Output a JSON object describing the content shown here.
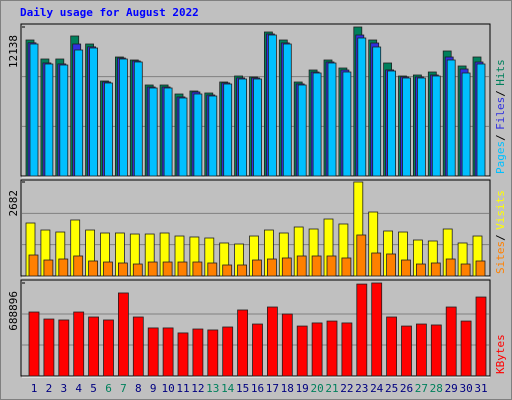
{
  "chart_data": [
    {
      "type": "bar",
      "title": "Daily usage for August 2022",
      "ylim": [
        0,
        12138
      ],
      "yticks": [
        12138
      ],
      "series": [
        {
          "name": "Hits",
          "color": "#00805c",
          "values": [
            11079,
            9531,
            9531,
            11405,
            10753,
            7739,
            9694,
            9450,
            7413,
            7413,
            6680,
            6924,
            6761,
            7657,
            8146,
            8065,
            11731,
            11079,
            7657,
            8635,
            9450,
            8798,
            12138,
            11079,
            9205,
            8146,
            8228,
            8472,
            10183,
            8961,
            9694
          ]
        },
        {
          "name": "Files",
          "color": "#3030e0",
          "values": [
            10850,
            9210,
            9130,
            10753,
            10520,
            7660,
            9610,
            9370,
            7250,
            7250,
            6440,
            6843,
            6600,
            7580,
            7990,
            7990,
            11570,
            10840,
            7500,
            8470,
            9290,
            8635,
            11486,
            10834,
            8640,
            8070,
            8070,
            8230,
            9694,
            8716,
            9287
          ]
        },
        {
          "name": "Pages",
          "color": "#00c0ff",
          "values": [
            10753,
            9124,
            9042,
            10264,
            10427,
            7576,
            9531,
            9287,
            7169,
            7169,
            6354,
            6680,
            6517,
            7494,
            7902,
            7902,
            11486,
            10753,
            7413,
            8391,
            9205,
            8472,
            11242,
            10509,
            8554,
            7983,
            7983,
            8146,
            9450,
            8391,
            9124
          ]
        }
      ]
    },
    {
      "type": "bar",
      "ylim": [
        0,
        2682
      ],
      "yticks": [
        2682
      ],
      "series": [
        {
          "name": "Visits",
          "color": "#ffff00",
          "values": [
            1512,
            1312,
            1255,
            1598,
            1312,
            1227,
            1227,
            1198,
            1198,
            1227,
            1141,
            1113,
            1084,
            942,
            913,
            1141,
            1312,
            1227,
            1398,
            1341,
            1626,
            1484,
            2682,
            1826,
            1284,
            1255,
            1027,
            999,
            1341,
            942,
            1141
          ]
        },
        {
          "name": "Sites",
          "color": "#ff8000",
          "values": [
            599,
            456,
            485,
            571,
            428,
            399,
            371,
            342,
            399,
            399,
            399,
            399,
            371,
            314,
            314,
            456,
            485,
            514,
            571,
            571,
            571,
            514,
            1170,
            656,
            628,
            456,
            342,
            371,
            485,
            342,
            428
          ]
        }
      ]
    },
    {
      "type": "bar",
      "ylim": [
        0,
        688896
      ],
      "yticks": [
        688896
      ],
      "categories": [
        "1",
        "2",
        "3",
        "4",
        "5",
        "6",
        "7",
        "8",
        "9",
        "10",
        "11",
        "12",
        "13",
        "14",
        "15",
        "16",
        "17",
        "18",
        "19",
        "20",
        "21",
        "22",
        "23",
        "24",
        "25",
        "26",
        "27",
        "28",
        "29",
        "30",
        "31"
      ],
      "category_colors": [
        "#000080",
        "#000080",
        "#000080",
        "#000080",
        "#000080",
        "#00805c",
        "#00805c",
        "#000080",
        "#000080",
        "#000080",
        "#000080",
        "#000080",
        "#00805c",
        "#00805c",
        "#000080",
        "#000080",
        "#000080",
        "#000080",
        "#000080",
        "#00805c",
        "#00805c",
        "#000080",
        "#000080",
        "#000080",
        "#000080",
        "#000080",
        "#00805c",
        "#00805c",
        "#000080",
        "#000080",
        "#000080"
      ],
      "series": [
        {
          "name": "KBytes",
          "color": "#ff0000",
          "values": [
            474000,
            422000,
            415000,
            474000,
            437000,
            415000,
            615000,
            437000,
            356000,
            356000,
            319000,
            348000,
            341000,
            363000,
            489000,
            385000,
            511000,
            459000,
            370000,
            393000,
            407000,
            393000,
            681000,
            688896,
            437000,
            370000,
            385000,
            378000,
            511000,
            407000,
            585000
          ]
        }
      ]
    }
  ]
}
